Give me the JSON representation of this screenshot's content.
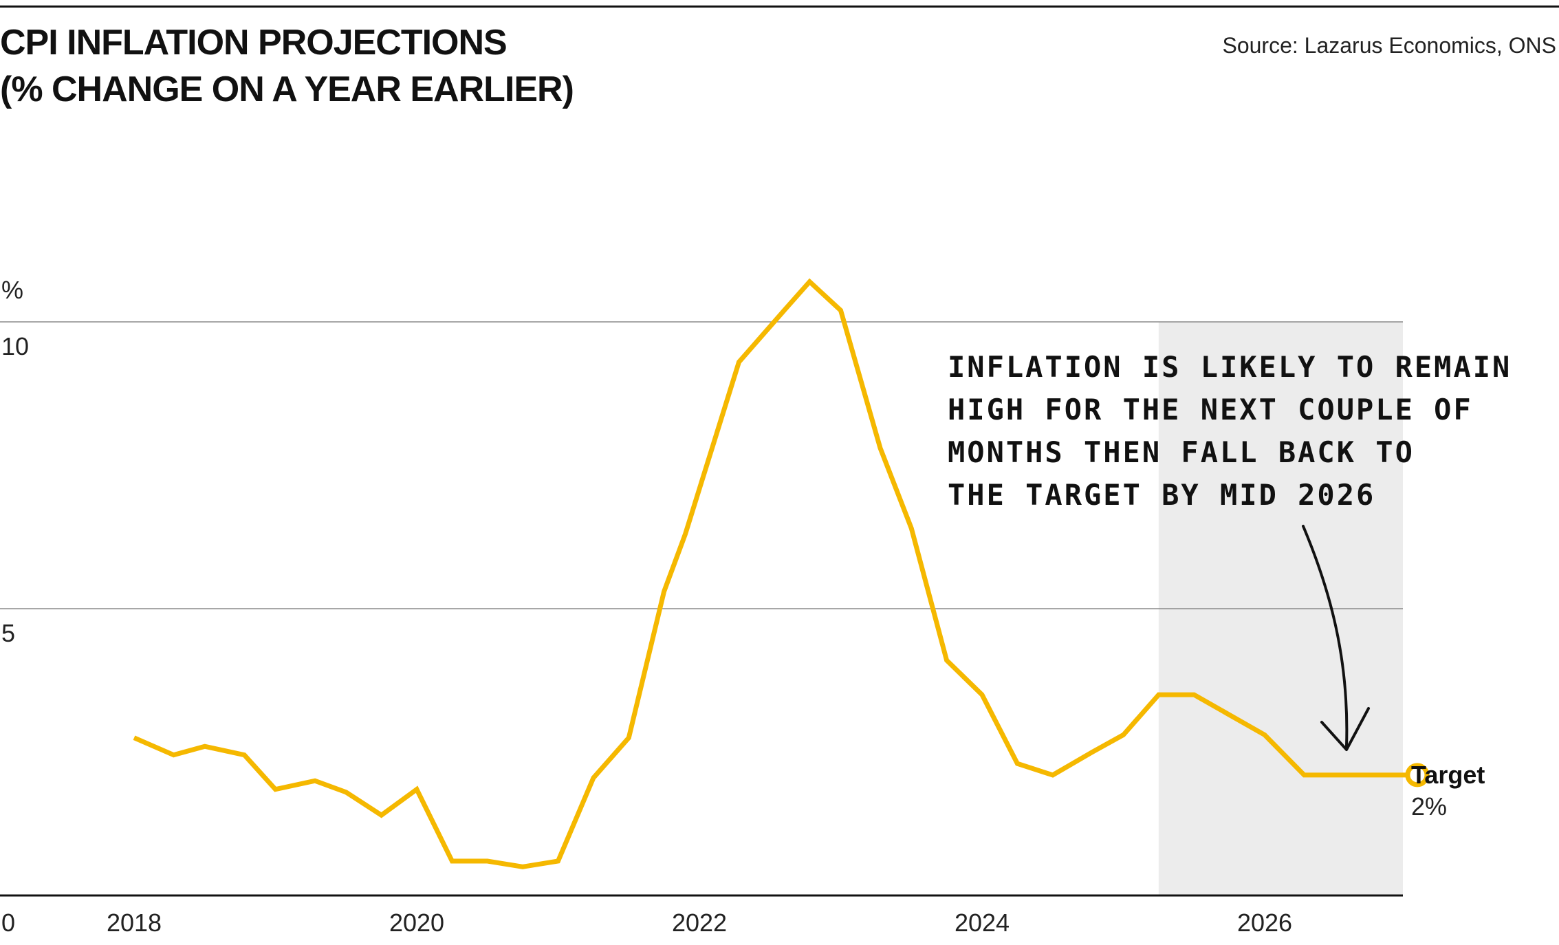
{
  "header": {
    "title_line1": "CPI INFLATION PROJECTIONS",
    "title_line2": "(% CHANGE ON A YEAR EARLIER)",
    "source": "Source: Lazarus Economics, ONS"
  },
  "chart_data": {
    "type": "line",
    "title": "CPI INFLATION PROJECTIONS (% CHANGE ON A YEAR EARLIER)",
    "ylabel": "%",
    "xlim": [
      2017.0,
      2027.4
    ],
    "ylim": [
      0,
      10
    ],
    "y_ticks": [
      "0",
      "5",
      "10"
    ],
    "x_ticks": [
      "2018",
      "2020",
      "2022",
      "2024",
      "2026"
    ],
    "grid": true,
    "projection_region": [
      2025.25,
      2027.4
    ],
    "series": [
      {
        "color": "#F5B800",
        "x": [
          2018.0,
          2018.28,
          2018.5,
          2018.78,
          2019.0,
          2019.28,
          2019.5,
          2019.75,
          2020.0,
          2020.25,
          2020.5,
          2020.75,
          2021.0,
          2021.25,
          2021.5,
          2021.75,
          2021.9,
          2022.28,
          2022.6,
          2022.78,
          2023.0,
          2023.28,
          2023.5,
          2023.75,
          2024.0,
          2024.25,
          2024.5,
          2024.78,
          2025.0,
          2025.25,
          2025.5,
          2025.75,
          2026.0,
          2026.28,
          2026.5,
          2026.75
        ],
        "y": [
          2.75,
          2.45,
          2.6,
          2.45,
          1.85,
          2.0,
          1.8,
          1.4,
          1.85,
          0.6,
          0.6,
          0.5,
          0.6,
          2.05,
          2.75,
          5.3,
          6.3,
          9.3,
          10.2,
          10.7,
          10.2,
          7.8,
          6.4,
          4.1,
          3.5,
          2.3,
          2.1,
          2.5,
          2.8,
          3.5,
          3.5,
          3.15,
          2.8,
          2.1,
          2.1,
          2.1
        ]
      }
    ],
    "target": {
      "label": "Target",
      "value_label": "2%",
      "value": 2.1
    },
    "annotation": [
      "INFLATION IS LIKELY TO REMAIN",
      "HIGH FOR THE NEXT COUPLE OF",
      "MONTHS THEN FALL BACK TO",
      "THE TARGET BY MID 2026"
    ]
  }
}
